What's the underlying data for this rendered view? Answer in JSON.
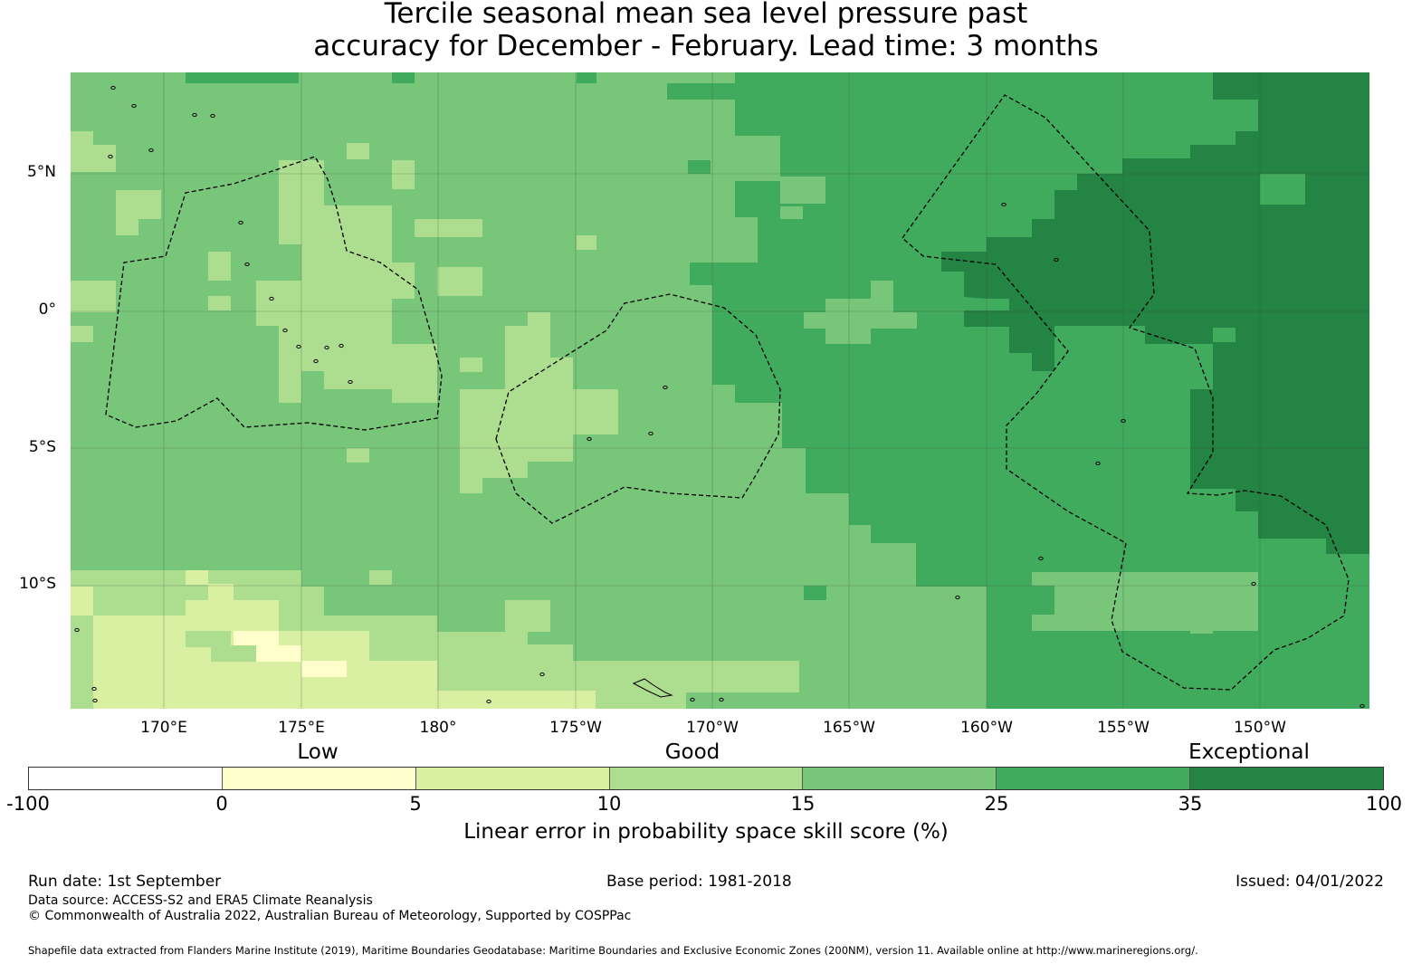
{
  "title_line1": "Tercile seasonal mean sea level pressure past",
  "title_line2": "accuracy for December - February. Lead time: 3 months",
  "longitude_labels": [
    "170°E",
    "175°E",
    "180°",
    "175°W",
    "170°W",
    "165°W",
    "160°W",
    "155°W",
    "150°W"
  ],
  "latitude_labels": [
    "5°N",
    "0°",
    "5°S",
    "10°S"
  ],
  "colorbar": {
    "categories": [
      "Low",
      "Good",
      "Exceptional"
    ],
    "ticks": [
      "-100",
      "0",
      "5",
      "10",
      "15",
      "25",
      "35",
      "100"
    ],
    "colors": [
      "#ffffff",
      "#ffffcc",
      "#d9f0a3",
      "#addd8e",
      "#78c679",
      "#41ab5d",
      "#238443"
    ],
    "label": "Linear error in probability space skill score (%)"
  },
  "footer": {
    "run_date": "Run date: 1st September",
    "base_period": "Base period: 1981-2018",
    "issued": "Issued: 04/01/2022",
    "data_source": "Data source: ACCESS-S2 and ERA5 Climate Reanalysis",
    "copyright": "© Commonwealth of Australia 2022, Australian Bureau of Meteorology, Supported by COSPPac",
    "shapefile": "Shapefile data extracted from Flanders Marine Institute (2019), Maritime Boundaries Geodatabase: Maritime Boundaries and Exclusive Economic Zones (200NM), version 11. Available online at http://www.marineregions.org/."
  }
}
